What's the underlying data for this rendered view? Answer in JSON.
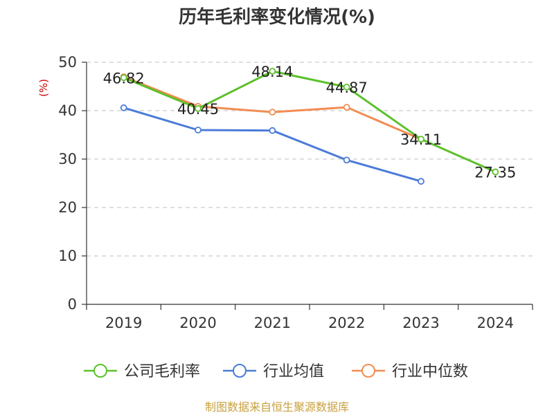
{
  "chart_data": {
    "type": "line",
    "title": "历年毛利率变化情况(%)",
    "ylabel": "(%)",
    "categories": [
      "2019",
      "2020",
      "2021",
      "2022",
      "2023",
      "2024"
    ],
    "ylim": [
      0,
      50
    ],
    "yticks": [
      "0",
      "10",
      "20",
      "30",
      "40",
      "50"
    ],
    "grid": true,
    "legend_position": "bottom",
    "series": [
      {
        "name": "公司毛利率",
        "color": "#5cc02a",
        "values": [
          46.82,
          40.45,
          48.14,
          44.87,
          34.11,
          27.35
        ],
        "labels": [
          "46.82",
          "40.45",
          "48.14",
          "44.87",
          "34.11",
          "27.35"
        ]
      },
      {
        "name": "行业均值",
        "color": "#4b7bd8",
        "values": [
          40.6,
          36.0,
          35.9,
          29.8,
          25.4,
          null
        ]
      },
      {
        "name": "行业中位数",
        "color": "#f28c52",
        "values": [
          47.0,
          40.9,
          39.7,
          40.7,
          34.1,
          null
        ]
      }
    ],
    "source": "制图数据来自恒生聚源数据库"
  }
}
